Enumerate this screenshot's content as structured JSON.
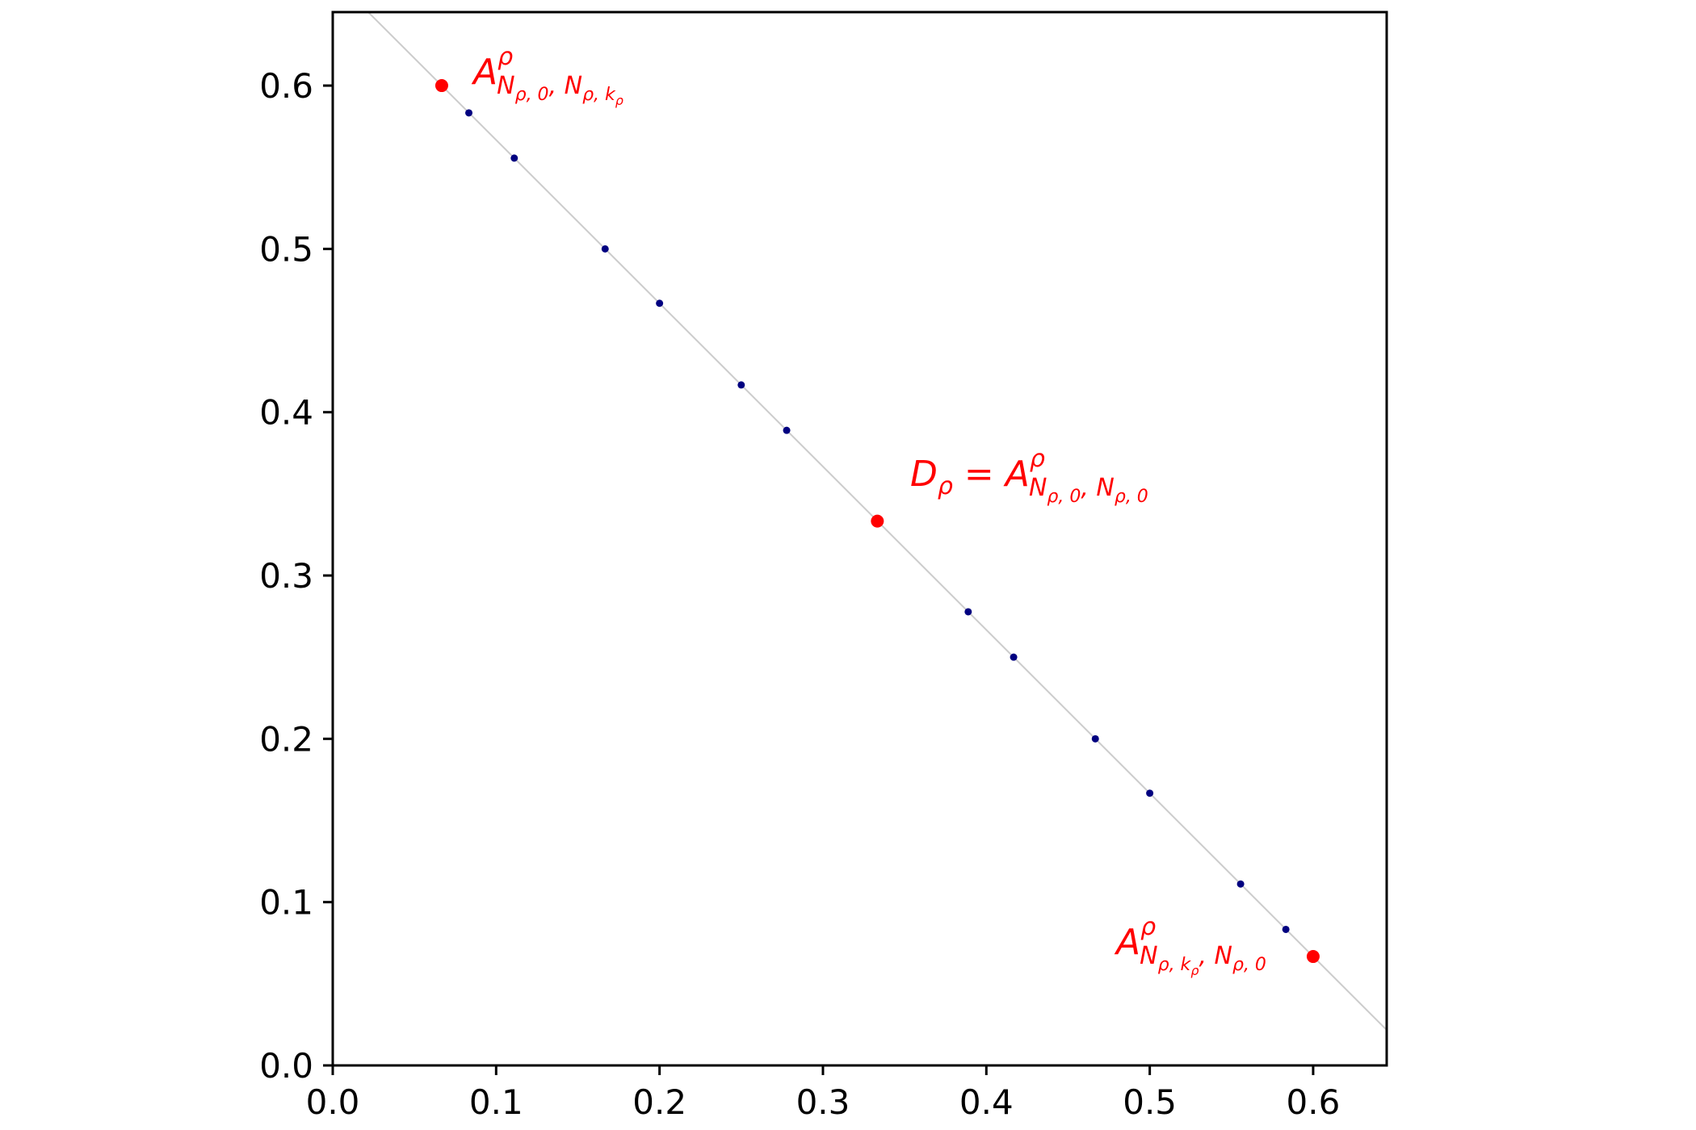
{
  "chart_data": {
    "type": "scatter",
    "title": "",
    "xlabel": "",
    "ylabel": "",
    "xlim": [
      0.0,
      0.645
    ],
    "ylim": [
      0.0,
      0.645
    ],
    "xticks": [
      "0.0",
      "0.1",
      "0.2",
      "0.3",
      "0.4",
      "0.5",
      "0.6"
    ],
    "yticks": [
      "0.0",
      "0.1",
      "0.2",
      "0.3",
      "0.4",
      "0.5",
      "0.6"
    ],
    "grid": false,
    "reference_line": {
      "description": "x + y = 2/3",
      "x": [
        0.0,
        0.6667
      ],
      "y": [
        0.6667,
        0.0
      ],
      "color": "#cccccc"
    },
    "small_points": {
      "color": "#000080",
      "x": [
        0.0833,
        0.1111,
        0.1667,
        0.2,
        0.25,
        0.2778,
        0.3889,
        0.4167,
        0.4667,
        0.5,
        0.5556,
        0.5833
      ],
      "y": [
        0.5833,
        0.5556,
        0.5,
        0.4667,
        0.4167,
        0.3889,
        0.2778,
        0.25,
        0.2,
        0.1667,
        0.1111,
        0.0833
      ]
    },
    "highlight_points": {
      "color": "#ff0000",
      "x": [
        0.0667,
        0.3333,
        0.6
      ],
      "y": [
        0.6,
        0.3333,
        0.0667
      ]
    },
    "annotations": [
      {
        "id": "top-left",
        "x": 0.0667,
        "y": 0.6,
        "main": "A",
        "sup": "ρ",
        "sub": "N",
        "sub_parts": [
          "ρ, 0",
          ", N",
          "ρ, k",
          "ρ"
        ]
      },
      {
        "id": "center",
        "x": 0.3333,
        "y": 0.3333,
        "prefix": "D",
        "prefix_sub": "ρ",
        "equals": " = ",
        "main": "A",
        "sup": "ρ",
        "sub_parts": [
          "N",
          "ρ, 0",
          ", N",
          "ρ, 0"
        ]
      },
      {
        "id": "bottom-right",
        "x": 0.6,
        "y": 0.0667,
        "main": "A",
        "sup": "ρ",
        "sub_parts": [
          "N",
          "ρ, k",
          "ρ",
          ", N",
          "ρ, 0"
        ]
      }
    ]
  }
}
